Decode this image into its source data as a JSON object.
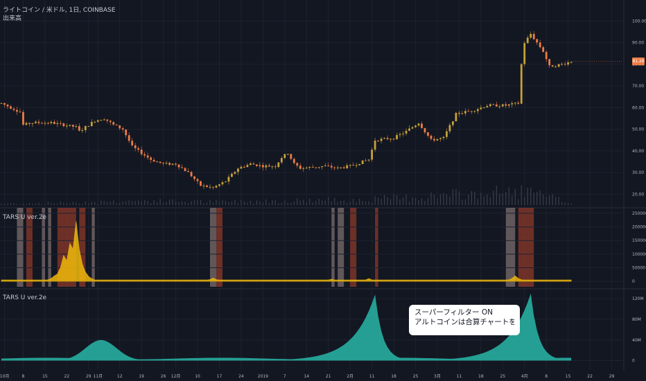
{
  "header": {
    "symbol_line": "ライトコイン / 米ドル, 1日, COINBASE",
    "volume_label": "出来高",
    "pane2_title": "TARS U ver.2e",
    "pane3_title": "TARS U ver.2e"
  },
  "price_tag": "81.26",
  "annotation": {
    "line1": "スーパーフィルター ON",
    "line2": "アルトコインは合算チャートを参照する ON"
  },
  "colors": {
    "background": "#131722",
    "grid": "#1e2230",
    "up": "#c5a23a",
    "down": "#ef7d45",
    "volume": "#3a3f4d",
    "band_red": "#8c3a2a",
    "band_grey": "#a08c88",
    "osc_fill": "#f0b90b",
    "teal": "#26a69a"
  },
  "chart_data": [
    {
      "type": "candlestick",
      "title": "ライトコイン / 米ドル, 1日, COINBASE",
      "ylim": [
        15,
        102
      ],
      "yticks": [
        "100.00",
        "90.00",
        "80.00",
        "70.00",
        "60.00",
        "50.00",
        "40.00",
        "30.00",
        "20.00"
      ],
      "ytick_values": [
        100,
        90,
        80,
        70,
        60,
        50,
        40,
        30,
        20
      ],
      "last_price": 81.26,
      "close_anchors": [
        [
          0,
          62
        ],
        [
          6,
          58
        ],
        [
          7,
          52
        ],
        [
          10,
          53
        ],
        [
          16,
          53
        ],
        [
          24,
          51
        ],
        [
          25,
          49
        ],
        [
          30,
          54
        ],
        [
          33,
          55
        ],
        [
          36,
          52
        ],
        [
          39,
          50
        ],
        [
          42,
          42
        ],
        [
          48,
          36
        ],
        [
          52,
          34
        ],
        [
          56,
          34
        ],
        [
          60,
          30
        ],
        [
          64,
          24
        ],
        [
          68,
          23
        ],
        [
          72,
          26
        ],
        [
          76,
          32
        ],
        [
          80,
          34
        ],
        [
          84,
          33
        ],
        [
          88,
          33
        ],
        [
          90,
          37
        ],
        [
          92,
          39
        ],
        [
          94,
          34
        ],
        [
          96,
          32
        ],
        [
          104,
          33
        ],
        [
          108,
          32
        ],
        [
          112,
          33
        ],
        [
          114,
          34
        ],
        [
          118,
          36
        ],
        [
          120,
          45
        ],
        [
          126,
          46
        ],
        [
          130,
          49
        ],
        [
          134,
          53
        ],
        [
          138,
          45
        ],
        [
          142,
          46
        ],
        [
          146,
          57
        ],
        [
          152,
          59
        ],
        [
          156,
          61
        ],
        [
          162,
          61
        ],
        [
          166,
          62
        ],
        [
          167,
          80
        ],
        [
          168,
          90
        ],
        [
          170,
          94
        ],
        [
          174,
          86
        ],
        [
          176,
          79
        ],
        [
          180,
          80
        ],
        [
          183,
          81.26
        ]
      ],
      "volume_anchors": [
        [
          0,
          2
        ],
        [
          25,
          4
        ],
        [
          44,
          6
        ],
        [
          70,
          5
        ],
        [
          118,
          8
        ],
        [
          168,
          20
        ],
        [
          183,
          3
        ]
      ]
    },
    {
      "type": "area",
      "title": "TARS U ver.2e",
      "ylim": [
        -20000,
        260000
      ],
      "yticks": [
        "250000",
        "200000",
        "150000",
        "100000",
        "50000",
        "0"
      ],
      "ytick_values": [
        250000,
        200000,
        150000,
        100000,
        50000,
        0
      ],
      "peaks": [
        [
          17,
          20000
        ],
        [
          20,
          95000
        ],
        [
          22,
          140000
        ],
        [
          24,
          220000
        ],
        [
          26,
          10000
        ],
        [
          68,
          12000
        ],
        [
          106,
          8000
        ],
        [
          118,
          10000
        ],
        [
          165,
          20000
        ]
      ],
      "baseline": 5000,
      "bands": [
        {
          "from": 5,
          "to": 7,
          "kind": "grey"
        },
        {
          "from": 8,
          "to": 10,
          "kind": "red"
        },
        {
          "from": 13,
          "to": 14,
          "kind": "grey"
        },
        {
          "from": 15,
          "to": 16,
          "kind": "grey"
        },
        {
          "from": 18,
          "to": 24,
          "kind": "red"
        },
        {
          "from": 25,
          "to": 27,
          "kind": "red"
        },
        {
          "from": 29,
          "to": 30,
          "kind": "grey"
        },
        {
          "from": 67,
          "to": 69,
          "kind": "grey"
        },
        {
          "from": 69,
          "to": 71,
          "kind": "red"
        },
        {
          "from": 106,
          "to": 107,
          "kind": "grey"
        },
        {
          "from": 108,
          "to": 110,
          "kind": "grey"
        },
        {
          "from": 112,
          "to": 114,
          "kind": "red"
        },
        {
          "from": 120,
          "to": 121,
          "kind": "red"
        },
        {
          "from": 162,
          "to": 165,
          "kind": "grey"
        },
        {
          "from": 166,
          "to": 171,
          "kind": "red"
        }
      ]
    },
    {
      "type": "area",
      "title": "TARS U ver.2e",
      "ylim": [
        -10,
        135
      ],
      "yticks": [
        "120M",
        "80M",
        "40M",
        "0"
      ],
      "ytick_values": [
        120,
        80,
        40,
        0
      ],
      "peaks": [
        [
          32,
          40
        ],
        [
          120,
          128
        ],
        [
          170,
          130
        ]
      ],
      "baseline": 2
    }
  ],
  "xaxis": {
    "labels": [
      "10月",
      "8",
      "15",
      "22",
      "29",
      "11月",
      "12",
      "19",
      "26",
      "12月",
      "10",
      "17",
      "24",
      "2019",
      "7",
      "14",
      "21",
      "2月",
      "11",
      "18",
      "25",
      "3月",
      "11",
      "18",
      "25",
      "4月",
      "8",
      "15",
      "22",
      "29"
    ],
    "positions": [
      1,
      7,
      14,
      21,
      28,
      31,
      38,
      45,
      52,
      56,
      63,
      70,
      77,
      84,
      91,
      98,
      105,
      112,
      119,
      126,
      133,
      140,
      147,
      154,
      161,
      168,
      175,
      182,
      189,
      196
    ]
  }
}
